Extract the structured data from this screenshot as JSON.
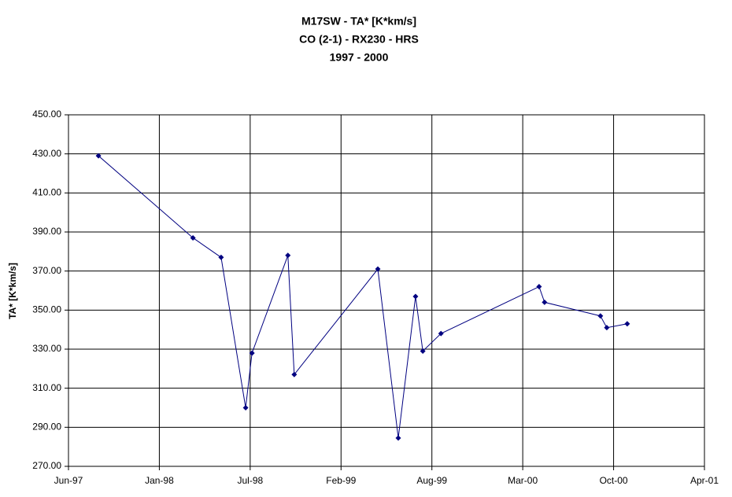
{
  "chart_data": {
    "type": "line",
    "title": [
      "M17SW - TA* [K*km/s]",
      "CO (2-1) - RX230 - HRS",
      "1997 - 2000"
    ],
    "y_label": "TA* [K*km/s]",
    "x": [
      35667,
      35875,
      35937,
      35991,
      36005,
      36084,
      36098,
      36282,
      36327,
      36365,
      36381,
      36421,
      36637,
      36649,
      36772,
      36786,
      36831
    ],
    "values": [
      429,
      387,
      377,
      300,
      328,
      378,
      317,
      371,
      284.5,
      357,
      329,
      338,
      362,
      354,
      347,
      341,
      343
    ],
    "color": "#000080",
    "xlim": [
      35601,
      37001
    ],
    "xticks": [
      {
        "value": 35601,
        "label": "Jun-97"
      },
      {
        "value": 35801,
        "label": "Jan-98"
      },
      {
        "value": 36001,
        "label": "Jul-98"
      },
      {
        "value": 36201,
        "label": "Feb-99"
      },
      {
        "value": 36401,
        "label": "Aug-99"
      },
      {
        "value": 36601,
        "label": "Mar-00"
      },
      {
        "value": 36801,
        "label": "Oct-00"
      },
      {
        "value": 37001,
        "label": "Apr-01"
      }
    ],
    "ylim": [
      270,
      450
    ],
    "yticks": [
      {
        "value": 270,
        "label": "270.00"
      },
      {
        "value": 290,
        "label": "290.00"
      },
      {
        "value": 310,
        "label": "310.00"
      },
      {
        "value": 330,
        "label": "330.00"
      },
      {
        "value": 350,
        "label": "350.00"
      },
      {
        "value": 370,
        "label": "370.00"
      },
      {
        "value": 390,
        "label": "390.00"
      },
      {
        "value": 410,
        "label": "410.00"
      },
      {
        "value": 430,
        "label": "430.00"
      },
      {
        "value": 450,
        "label": "450.00"
      }
    ],
    "grid": true
  }
}
